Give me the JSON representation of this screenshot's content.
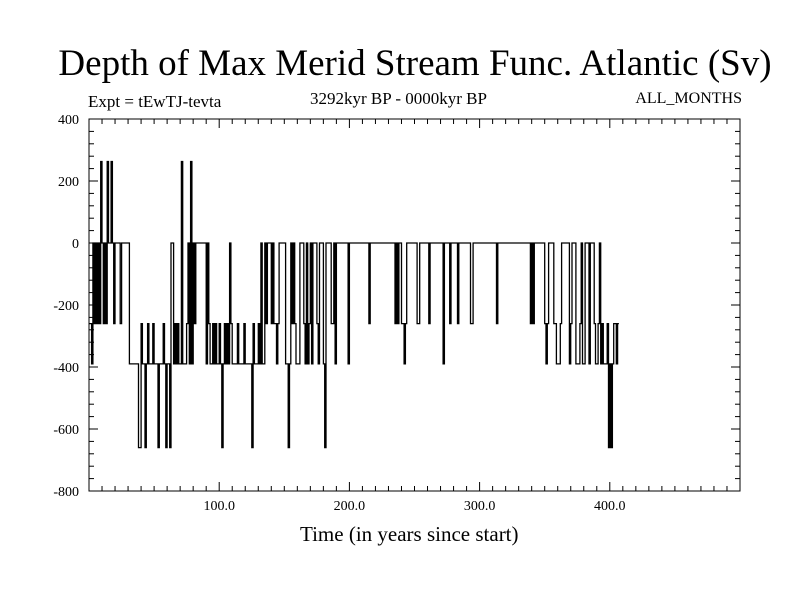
{
  "chart_data": {
    "type": "line",
    "title": "Depth of Max Merid Stream Func. Atlantic (Sv)",
    "subtitle_left": "Expt = tEwTJ-tevta",
    "subtitle_center": "3292kyr BP - 0000kyr BP",
    "subtitle_right": "ALL_MONTHS",
    "xlabel": "Time (in years since start)",
    "ylabel": "",
    "xlim": [
      0,
      500
    ],
    "ylim": [
      -800,
      400
    ],
    "x_ticks": [
      100,
      200,
      300,
      400
    ],
    "x_tick_labels": [
      "100.0",
      "200.0",
      "300.0",
      "400.0"
    ],
    "y_ticks": [
      400,
      200,
      0,
      -200,
      -400,
      -600,
      -800
    ],
    "y_tick_labels": [
      "400",
      "200",
      "0",
      "-200",
      "-400",
      "-600",
      "-800"
    ],
    "series": [
      {
        "name": "Depth of Max Merid Stream Func.",
        "x_start": 0,
        "x_step": 1,
        "values": [
          -260,
          -260,
          -390,
          0,
          -260,
          0,
          -260,
          0,
          -260,
          263,
          0,
          -260,
          0,
          -260,
          263,
          0,
          0,
          263,
          0,
          -260,
          0,
          0,
          0,
          0,
          -260,
          0,
          0,
          0,
          0,
          0,
          0,
          -390,
          -390,
          -390,
          -390,
          -390,
          -390,
          -390,
          -660,
          -660,
          -260,
          -390,
          -390,
          -660,
          -390,
          -260,
          -390,
          -390,
          -390,
          -260,
          -390,
          -390,
          -390,
          -660,
          -390,
          -390,
          -390,
          -260,
          -390,
          -660,
          -390,
          -390,
          -660,
          0,
          0,
          -390,
          -260,
          -390,
          -260,
          -390,
          -390,
          263,
          -390,
          -390,
          -390,
          -260,
          0,
          -390,
          263,
          -390,
          0,
          -260,
          0,
          0,
          0,
          0,
          0,
          0,
          0,
          0,
          -390,
          0,
          -260,
          -390,
          -390,
          -260,
          -390,
          -260,
          -390,
          -390,
          -260,
          -390,
          -660,
          -390,
          -260,
          -390,
          -260,
          -390,
          0,
          -260,
          -390,
          -390,
          -390,
          -390,
          -260,
          -390,
          -390,
          -390,
          -390,
          -260,
          -390,
          -390,
          -390,
          -390,
          -390,
          -660,
          -260,
          -390,
          -390,
          -390,
          -260,
          -390,
          0,
          -390,
          -390,
          0,
          -260,
          0,
          0,
          0,
          -260,
          0,
          -260,
          -260,
          -390,
          -260,
          0,
          0,
          0,
          0,
          0,
          -390,
          -390,
          -660,
          -390,
          0,
          -260,
          0,
          -260,
          -390,
          -390,
          -390,
          0,
          0,
          0,
          -260,
          -390,
          0,
          -390,
          -260,
          0,
          -390,
          0,
          0,
          0,
          -260,
          -390,
          0,
          0,
          0,
          -390,
          -660,
          0,
          0,
          0,
          0,
          -260,
          -260,
          0,
          -390,
          0,
          0,
          0,
          0,
          0,
          0,
          0,
          0,
          0,
          -390,
          0,
          0,
          0,
          0,
          0,
          0,
          0,
          0,
          0,
          0,
          0,
          0,
          0,
          0,
          0,
          -260,
          0,
          0,
          0,
          0,
          0,
          0,
          0,
          0,
          0,
          0,
          0,
          0,
          0,
          0,
          0,
          0,
          0,
          0,
          0,
          -260,
          0,
          -260,
          0,
          0,
          -260,
          -260,
          -390,
          -260,
          0,
          0,
          0,
          0,
          0,
          0,
          0,
          0,
          -260,
          -260,
          0,
          0,
          0,
          0,
          0,
          0,
          0,
          -260,
          0,
          0,
          0,
          0,
          0,
          0,
          0,
          0,
          0,
          0,
          -390,
          0,
          0,
          0,
          0,
          -260,
          0,
          0,
          0,
          0,
          0,
          -260,
          0,
          0,
          0,
          0,
          0,
          0,
          0,
          0,
          0,
          -260,
          -260,
          0,
          0,
          0,
          0,
          0,
          0,
          0,
          0,
          0,
          0,
          0,
          0,
          0,
          0,
          0,
          0,
          0,
          0,
          -260,
          0,
          0,
          0,
          0,
          0,
          0,
          0,
          0,
          0,
          0,
          0,
          0,
          0,
          0,
          0,
          0,
          0,
          0,
          0,
          0,
          0,
          0,
          0,
          0,
          0,
          -260,
          0,
          -260,
          0,
          0,
          0,
          0,
          0,
          0,
          0,
          0,
          -260,
          -390,
          -260,
          0,
          0,
          0,
          0,
          -260,
          -260,
          -390,
          -390,
          -390,
          -260,
          0,
          0,
          0,
          0,
          0,
          0,
          -390,
          -260,
          0,
          0,
          0,
          -390,
          -390,
          -390,
          -260,
          0,
          -390,
          -390,
          0,
          0,
          0,
          -390,
          0,
          0,
          0,
          -260,
          -390,
          -390,
          -260,
          0,
          -390,
          -260,
          -390,
          -390,
          -390,
          -260,
          -660,
          -390,
          -660,
          -390,
          -260,
          -260,
          -390,
          -260
        ]
      }
    ]
  }
}
